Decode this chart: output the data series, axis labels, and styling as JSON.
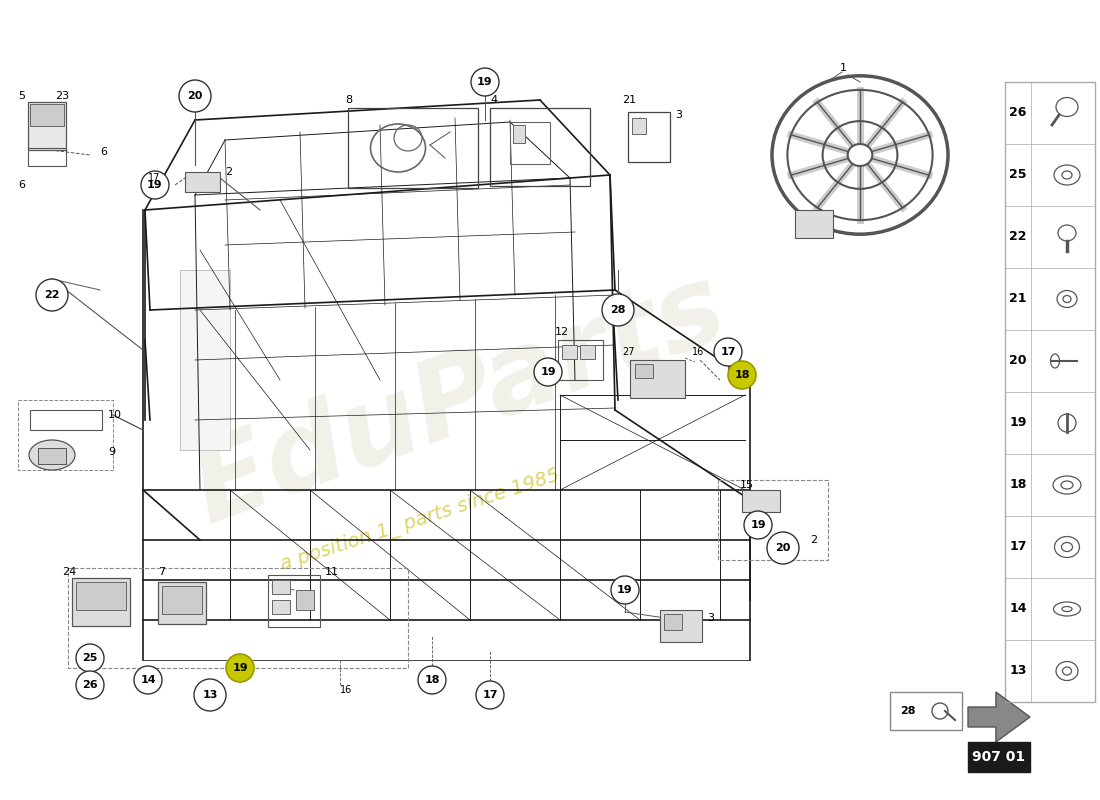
{
  "bg_color": "#ffffff",
  "part_number": "907 01",
  "right_panel_items": [
    {
      "num": 26,
      "icon": "screw_cap"
    },
    {
      "num": 25,
      "icon": "washer_flat"
    },
    {
      "num": 22,
      "icon": "bolt_collar"
    },
    {
      "num": 21,
      "icon": "nut_flange"
    },
    {
      "num": 20,
      "icon": "screw_handle"
    },
    {
      "num": 19,
      "icon": "bolt_hex"
    },
    {
      "num": 18,
      "icon": "washer_large"
    },
    {
      "num": 17,
      "icon": "nut_hex"
    },
    {
      "num": 14,
      "icon": "washer_thin"
    },
    {
      "num": 13,
      "icon": "nut_serrated"
    }
  ],
  "watermark_color": "#ddddcc",
  "watermark_yellow": "#c8c800"
}
